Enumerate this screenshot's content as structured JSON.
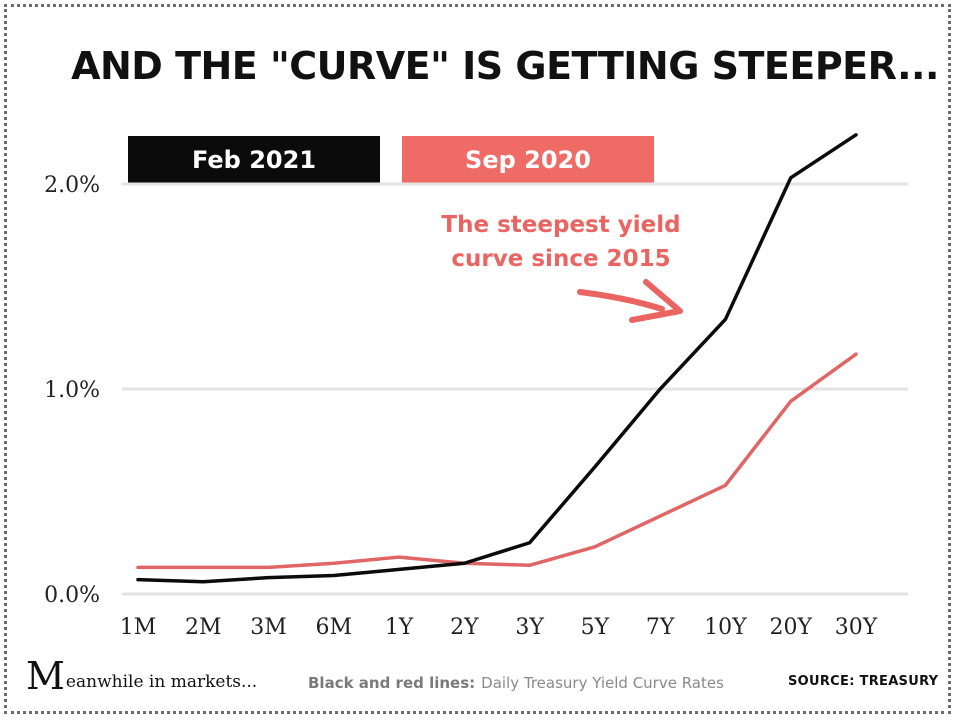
{
  "title": "AND THE \"CURVE\" IS GETTING STEEPER...",
  "annotation": {
    "line1": "The steepest yield",
    "line2": "curve since 2015"
  },
  "footer": {
    "brand_initial": "M",
    "brand_rest": "eanwhile in markets...",
    "note_label": "Black and red lines:",
    "note_text": "Daily Treasury Yield Curve Rates",
    "source_label": "SOURCE:",
    "source_value": "TREASURY"
  },
  "colors": {
    "feb": "#0b0b0b",
    "sep": "#e06666"
  },
  "chart_data": {
    "type": "line",
    "title": "AND THE \"CURVE\" IS GETTING STEEPER...",
    "xlabel": "",
    "ylabel": "",
    "categories": [
      "1M",
      "2M",
      "3M",
      "6M",
      "1Y",
      "2Y",
      "3Y",
      "5Y",
      "7Y",
      "10Y",
      "20Y",
      "30Y"
    ],
    "y_ticks": [
      {
        "value": 0,
        "label": "0.0%"
      },
      {
        "value": 1,
        "label": "1.0%"
      },
      {
        "value": 2,
        "label": "2.0%"
      }
    ],
    "ylim": [
      0,
      2.3
    ],
    "grid": true,
    "legend": "top-left",
    "series": [
      {
        "name": "Feb 2021",
        "color": "#0b0b0b",
        "values": [
          0.07,
          0.06,
          0.08,
          0.09,
          0.12,
          0.15,
          0.25,
          0.62,
          1.0,
          1.34,
          2.03,
          2.24
        ]
      },
      {
        "name": "Sep 2020",
        "color": "#e06666",
        "values": [
          0.13,
          0.13,
          0.13,
          0.15,
          0.18,
          0.15,
          0.14,
          0.23,
          0.38,
          0.53,
          0.94,
          1.17
        ]
      }
    ]
  }
}
